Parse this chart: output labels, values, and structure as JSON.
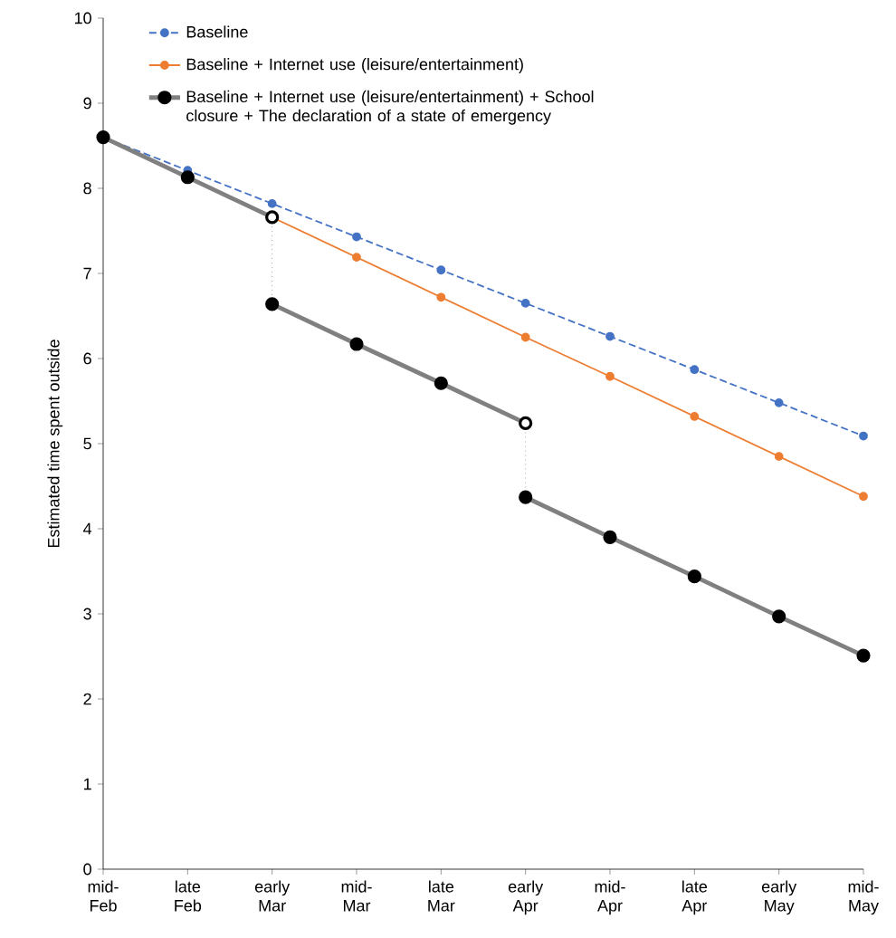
{
  "chart_data": {
    "type": "line",
    "ylabel": "Estimated time spent outside",
    "categories": [
      "mid- Feb",
      "late Feb",
      "early Mar",
      "mid- Mar",
      "late Mar",
      "early Apr",
      "mid- Apr",
      "late Apr",
      "early May",
      "mid- May"
    ],
    "ylim": [
      0,
      10
    ],
    "yticks": [
      0,
      1,
      2,
      3,
      4,
      5,
      6,
      7,
      8,
      9,
      10
    ],
    "grid": false,
    "legend": "top left",
    "marker": "circle",
    "series": [
      {
        "name": "Baseline",
        "color": "#4472c4",
        "line_style": "dashed",
        "values": [
          8.6,
          8.21,
          7.82,
          7.43,
          7.04,
          6.65,
          6.26,
          5.87,
          5.48,
          5.09
        ]
      },
      {
        "name": "Baseline + Internet use (leisure/entertainment)",
        "color": "#ed7d31",
        "line_style": "solid",
        "values": [
          null,
          null,
          7.66,
          7.19,
          6.72,
          6.25,
          5.79,
          5.32,
          4.85,
          4.38
        ]
      },
      {
        "name": "Baseline + Internet use (leisure/entertainment) + School closure + The declaration of a state of emergency",
        "color": "#000000",
        "line_style": "solid",
        "values": [
          8.6,
          8.13,
          7.66,
          null,
          null,
          null,
          null,
          null,
          null,
          null
        ]
      },
      {
        "color": "#000000",
        "line_style": "solid",
        "values": [
          null,
          null,
          6.64,
          6.17,
          5.71,
          5.24,
          null,
          null,
          null,
          null
        ]
      },
      {
        "color": "#000000",
        "line_style": "solid",
        "values": [
          null,
          null,
          null,
          null,
          null,
          4.37,
          3.9,
          3.44,
          2.97,
          2.51
        ]
      },
      {
        "color": "#a6a6a6",
        "line_style": "dotted",
        "marker": "none",
        "x": [
          "early Mar",
          "early Mar"
        ],
        "values": [
          7.66,
          6.64
        ]
      },
      {
        "color": "#a6a6a6",
        "line_style": "dotted",
        "marker": "none",
        "x": [
          "early Apr",
          "early Apr"
        ],
        "values": [
          5.24,
          4.37
        ]
      },
      {
        "type": "scatter",
        "color": "#ffffff",
        "values": [
          null,
          null,
          7.66,
          null,
          null,
          5.24,
          null,
          null,
          null,
          null
        ]
      }
    ]
  }
}
